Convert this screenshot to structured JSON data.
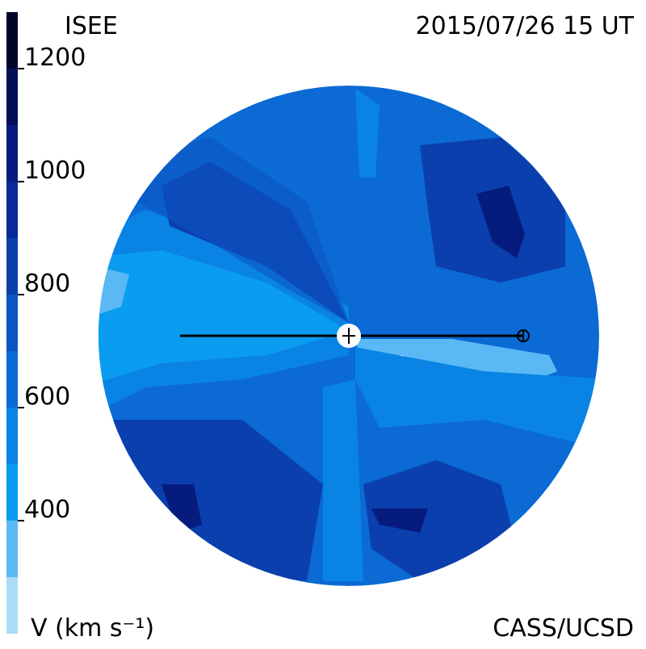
{
  "header": {
    "model": "ISEE",
    "timestamp": "2015/07/26 15 UT"
  },
  "footer": {
    "credit": "CASS/UCSD"
  },
  "colorbar": {
    "label": "V (km s⁻¹)",
    "ylim": [
      200,
      1300
    ],
    "yticks": [
      400,
      600,
      800,
      1000,
      1200
    ],
    "bands": [
      {
        "from": 200,
        "to": 300,
        "color": "#aadcf8"
      },
      {
        "from": 300,
        "to": 400,
        "color": "#5ab9f4"
      },
      {
        "from": 400,
        "to": 500,
        "color": "#0a9cf0"
      },
      {
        "from": 500,
        "to": 600,
        "color": "#0a84e4"
      },
      {
        "from": 600,
        "to": 700,
        "color": "#0a6bd4"
      },
      {
        "from": 700,
        "to": 800,
        "color": "#0b55c2"
      },
      {
        "from": 800,
        "to": 900,
        "color": "#0b3fae"
      },
      {
        "from": 900,
        "to": 1000,
        "color": "#08299a"
      },
      {
        "from": 1000,
        "to": 1100,
        "color": "#061b7e"
      },
      {
        "from": 1100,
        "to": 1200,
        "color": "#040f5a"
      },
      {
        "from": 1200,
        "to": 1300,
        "color": "#02052a"
      }
    ]
  }
}
